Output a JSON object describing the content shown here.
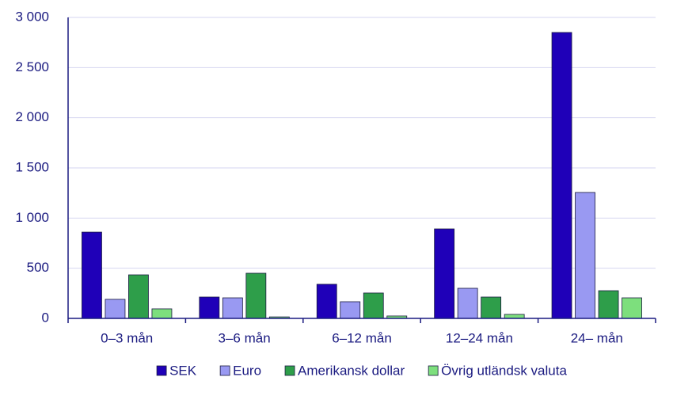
{
  "chart_data": {
    "type": "bar",
    "categories": [
      "0–3 mån",
      "3–6 mån",
      "6–12 mån",
      "12–24 mån",
      "24– mån"
    ],
    "series": [
      {
        "name": "SEK",
        "color": "#1f00b8",
        "values": [
          860,
          213,
          340,
          892,
          2850
        ]
      },
      {
        "name": "Euro",
        "color": "#9999f2",
        "values": [
          190,
          205,
          166,
          300,
          1255
        ]
      },
      {
        "name": "Amerikansk dollar",
        "color": "#2e9e4a",
        "values": [
          434,
          450,
          253,
          213,
          276
        ]
      },
      {
        "name": "Övrig utländsk valuta",
        "color": "#7ddf7d",
        "values": [
          95,
          15,
          24,
          40,
          205
        ]
      }
    ],
    "ylim": [
      0,
      3000
    ],
    "yticks": [
      0,
      500,
      {
        "value": 1000,
        "label": "1 000"
      },
      {
        "value": 1500,
        "label": "1 500"
      },
      {
        "value": 2000,
        "label": "2 000"
      },
      {
        "value": 2500,
        "label": "2 500"
      },
      {
        "value": 3000,
        "label": "3 000"
      }
    ],
    "grid": true,
    "legend": "bottom"
  }
}
